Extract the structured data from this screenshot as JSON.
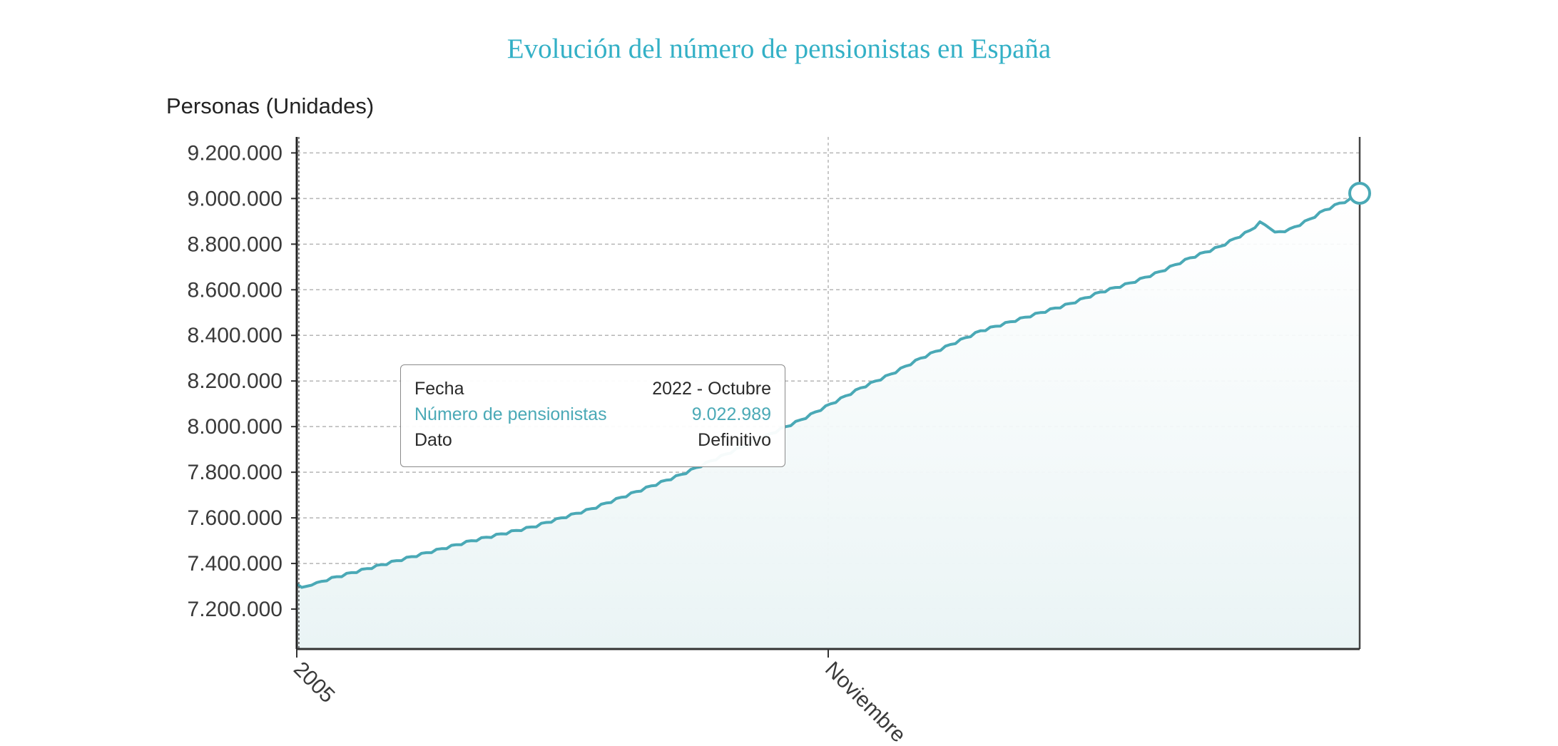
{
  "title": "Evolución del número de pensionistas en España",
  "colors": {
    "title": "#33b0c6",
    "line": "#4aa9b6",
    "area_top": "#eef7f8",
    "grid": "#b5b5b5"
  },
  "tooltip": {
    "rows": [
      {
        "label": "Fecha",
        "value": "2022 - Octubre"
      },
      {
        "label": "Número de pensionistas",
        "value": "9.022.989",
        "highlight": true
      },
      {
        "label": "Dato",
        "value": "Definitivo"
      }
    ]
  },
  "chart_data": {
    "type": "area",
    "title": "Evolución del número de pensionistas en España",
    "ylabel": "Personas (Unidades)",
    "xlabel": "",
    "y_tick_labels": [
      "9.200.000",
      "9.000.000",
      "8.800.000",
      "8.600.000",
      "8.400.000",
      "8.200.000",
      "8.000.000",
      "7.800.000",
      "7.600.000",
      "7.400.000",
      "7.200.000"
    ],
    "x_tick_labels": [
      "2005",
      "Noviembre"
    ],
    "ylim": [
      7025000,
      9270000
    ],
    "grid": true,
    "legend": "none",
    "series": [
      {
        "points": [
          [
            "2005-01",
            7310000
          ],
          [
            "2005-02",
            7295000
          ],
          [
            "2005-04",
            7305000
          ],
          [
            "2005-07",
            7330000
          ],
          [
            "2005-12",
            7360000
          ],
          [
            "2006-06",
            7395000
          ],
          [
            "2006-12",
            7430000
          ],
          [
            "2007-06",
            7465000
          ],
          [
            "2007-12",
            7500000
          ],
          [
            "2008-06",
            7530000
          ],
          [
            "2008-12",
            7560000
          ],
          [
            "2009-06",
            7600000
          ],
          [
            "2009-12",
            7640000
          ],
          [
            "2010-06",
            7690000
          ],
          [
            "2010-12",
            7740000
          ],
          [
            "2011-06",
            7790000
          ],
          [
            "2011-12",
            7850000
          ],
          [
            "2012-06",
            7910000
          ],
          [
            "2012-12",
            7970000
          ],
          [
            "2013-06",
            8030000
          ],
          [
            "2013-12",
            8100000
          ],
          [
            "2014-06",
            8170000
          ],
          [
            "2014-12",
            8230000
          ],
          [
            "2015-06",
            8300000
          ],
          [
            "2015-12",
            8360000
          ],
          [
            "2016-06",
            8420000
          ],
          [
            "2016-12",
            8460000
          ],
          [
            "2017-06",
            8500000
          ],
          [
            "2017-12",
            8540000
          ],
          [
            "2018-06",
            8590000
          ],
          [
            "2018-12",
            8630000
          ],
          [
            "2019-06",
            8680000
          ],
          [
            "2019-12",
            8740000
          ],
          [
            "2020-06",
            8790000
          ],
          [
            "2020-12",
            8860000
          ],
          [
            "2021-02",
            8895000
          ],
          [
            "2021-04",
            8875000
          ],
          [
            "2021-05",
            8850000
          ],
          [
            "2021-08",
            8865000
          ],
          [
            "2021-12",
            8910000
          ],
          [
            "2022-03",
            8950000
          ],
          [
            "2022-06",
            8980000
          ],
          [
            "2022-08",
            8995000
          ],
          [
            "2022-10",
            9022989
          ]
        ]
      }
    ],
    "highlight_point": {
      "x": "2022-10",
      "y": 9022989
    }
  }
}
